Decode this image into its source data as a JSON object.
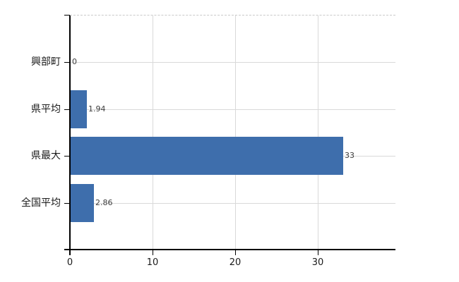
{
  "chart_data": {
    "type": "bar",
    "orientation": "horizontal",
    "categories": [
      "興部町",
      "県平均",
      "県最大",
      "全国平均"
    ],
    "values": [
      0,
      1.94,
      33,
      2.86
    ],
    "value_labels": [
      "0",
      "1.94",
      "33",
      "2.86"
    ],
    "x_ticks": [
      0,
      10,
      20,
      30
    ],
    "x_tick_labels": [
      "0",
      "10",
      "20",
      "30"
    ],
    "xlim": [
      0,
      39.4
    ],
    "grid": true,
    "legend": "none",
    "bar_color": "#3e6eac",
    "gridline_color": "#d9d9d9",
    "plot_border_top_color": "#c9c9c9",
    "axis_color": "#000000",
    "category_label_color": "#1a1a1a",
    "value_label_color": "#3c3c3c"
  }
}
